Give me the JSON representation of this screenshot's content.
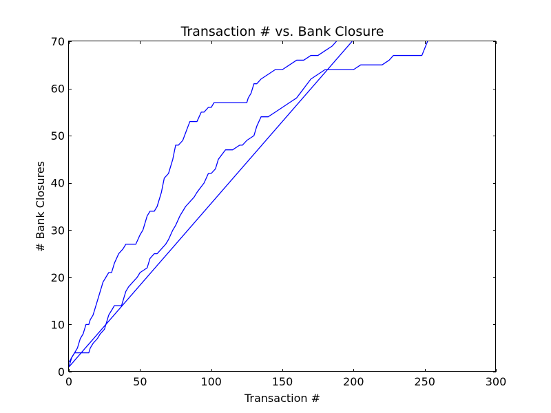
{
  "chart_data": {
    "type": "line",
    "title": "Transaction # vs. Bank Closure",
    "xlabel": "Transaction #",
    "ylabel": "# Bank Closures",
    "xlim": [
      0,
      300
    ],
    "ylim": [
      0,
      70
    ],
    "xticks": [
      "0",
      "50",
      "100",
      "150",
      "200",
      "250",
      "300"
    ],
    "yticks": [
      "0",
      "10",
      "20",
      "30",
      "40",
      "50",
      "60",
      "70"
    ],
    "grid": false,
    "line_color": "#0000ff",
    "series": [
      {
        "x": [
          0,
          2,
          4,
          6,
          8,
          10,
          12,
          14,
          15,
          17,
          20,
          22,
          24,
          26,
          28,
          30,
          32,
          35,
          38,
          40,
          43,
          45,
          47,
          50,
          52,
          55,
          57,
          60,
          62,
          65,
          67,
          70,
          73,
          75,
          77,
          80,
          85,
          90,
          93,
          95,
          98,
          100,
          102,
          110,
          115,
          120,
          125,
          126,
          128,
          130,
          132,
          135,
          140,
          145,
          150,
          155,
          160,
          165,
          170,
          172,
          175,
          180,
          185,
          188
        ],
        "y": [
          1,
          3,
          4,
          5,
          7,
          8,
          10,
          10,
          11,
          12,
          15,
          17,
          19,
          20,
          21,
          21,
          23,
          25,
          26,
          27,
          27,
          27,
          27,
          29,
          30,
          33,
          34,
          34,
          35,
          38,
          41,
          42,
          45,
          48,
          48,
          49,
          53,
          53,
          55,
          55,
          56,
          56,
          57,
          57,
          57,
          57,
          57,
          58,
          59,
          61,
          61,
          62,
          63,
          64,
          64,
          65,
          66,
          66,
          67,
          67,
          67,
          68,
          69,
          70
        ]
      },
      {
        "x": [
          0,
          2,
          4,
          6,
          8,
          10,
          12,
          14,
          15,
          17,
          20,
          22,
          25,
          28,
          30,
          32,
          35,
          37,
          40,
          42,
          45,
          48,
          50,
          55,
          57,
          60,
          62,
          65,
          68,
          70,
          73,
          75,
          78,
          80,
          82,
          85,
          88,
          90,
          95,
          98,
          100,
          103,
          105,
          110,
          115,
          120,
          122,
          125,
          130,
          132,
          135,
          138,
          140,
          145,
          150,
          155,
          160,
          165,
          170,
          175,
          180,
          185,
          190,
          195,
          200,
          205,
          210,
          215,
          220,
          225,
          228,
          232,
          240,
          248,
          252
        ],
        "y": [
          2,
          3,
          4,
          4,
          4,
          4,
          4,
          4,
          5,
          6,
          7,
          8,
          9,
          12,
          13,
          14,
          14,
          14,
          17,
          18,
          19,
          20,
          21,
          22,
          24,
          25,
          25,
          26,
          27,
          28,
          30,
          31,
          33,
          34,
          35,
          36,
          37,
          38,
          40,
          42,
          42,
          43,
          45,
          47,
          47,
          48,
          48,
          49,
          50,
          52,
          54,
          54,
          54,
          55,
          56,
          57,
          58,
          60,
          62,
          63,
          64,
          64,
          64,
          64,
          64,
          65,
          65,
          65,
          65,
          66,
          67,
          67,
          67,
          67,
          70
        ]
      },
      {
        "x": [
          0,
          199
        ],
        "y": [
          1,
          70
        ]
      }
    ]
  }
}
